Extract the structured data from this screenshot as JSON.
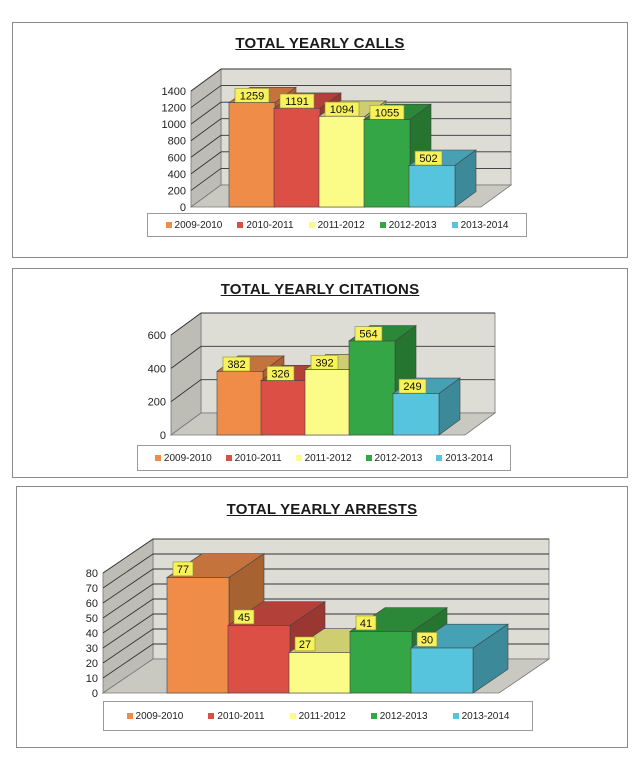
{
  "chart_data": [
    {
      "type": "bar",
      "title": "TOTAL YEARLY CALLS",
      "categories": [
        "2009-2010",
        "2010-2011",
        "2011-2012",
        "2012-2013",
        "2013-2014"
      ],
      "values": [
        1259,
        1191,
        1094,
        1055,
        502
      ],
      "data_labels": [
        "1259",
        "1191",
        "1094",
        "1055",
        "502"
      ],
      "yticks": [
        "0",
        "200",
        "400",
        "600",
        "800",
        "1000",
        "1200",
        "1400"
      ],
      "ylim": [
        0,
        1400
      ],
      "three_d": true,
      "grid": true,
      "legend": "bottom"
    },
    {
      "type": "bar",
      "title": "TOTAL YEARLY CITATIONS",
      "categories": [
        "2009-2010",
        "2010-2011",
        "2011-2012",
        "2012-2013",
        "2013-2014"
      ],
      "values": [
        382,
        326,
        392,
        564,
        249
      ],
      "data_labels": [
        "382",
        "326",
        "392",
        "564",
        "249"
      ],
      "yticks": [
        "0",
        "200",
        "400",
        "600"
      ],
      "ylim": [
        0,
        600
      ],
      "three_d": true,
      "grid": true,
      "legend": "bottom"
    },
    {
      "type": "bar",
      "title": "TOTAL YEARLY ARRESTS",
      "categories": [
        "2009-2010",
        "2010-2011",
        "2011-2012",
        "2012-2013",
        "2013-2014"
      ],
      "values": [
        77,
        45,
        27,
        41,
        30
      ],
      "data_labels": [
        "77",
        "45",
        "27",
        "41",
        "30"
      ],
      "yticks": [
        "0",
        "10",
        "20",
        "30",
        "40",
        "50",
        "60",
        "70",
        "80"
      ],
      "ylim": [
        0,
        80
      ],
      "three_d": true,
      "grid": true,
      "legend": "bottom"
    }
  ],
  "series_colors": [
    "#ee8c48",
    "#dc4f45",
    "#fbfb88",
    "#35a645",
    "#56c4dc"
  ]
}
